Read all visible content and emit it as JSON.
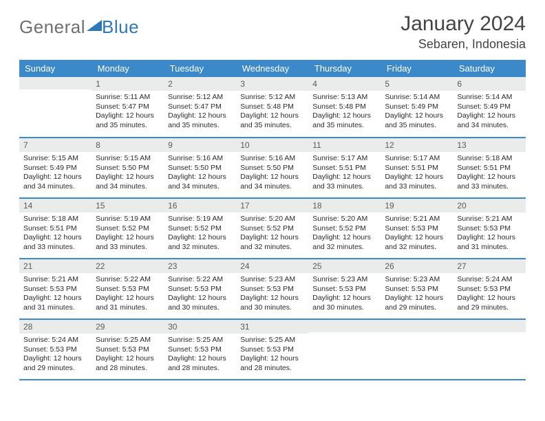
{
  "logo": {
    "part1": "General",
    "part2": "Blue"
  },
  "title": "January 2024",
  "location": "Sebaren, Indonesia",
  "colors": {
    "header_bg": "#3b89c9",
    "header_text": "#ffffff",
    "daynum_bg": "#e9eceb",
    "rule": "#3b89c9",
    "logo_gray": "#6f6f6f",
    "logo_blue": "#2e77b8"
  },
  "weekdays": [
    "Sunday",
    "Monday",
    "Tuesday",
    "Wednesday",
    "Thursday",
    "Friday",
    "Saturday"
  ],
  "weeks": [
    [
      {
        "n": "",
        "sunrise": "",
        "sunset": "",
        "daylight": ""
      },
      {
        "n": "1",
        "sunrise": "5:11 AM",
        "sunset": "5:47 PM",
        "daylight": "12 hours and 35 minutes."
      },
      {
        "n": "2",
        "sunrise": "5:12 AM",
        "sunset": "5:47 PM",
        "daylight": "12 hours and 35 minutes."
      },
      {
        "n": "3",
        "sunrise": "5:12 AM",
        "sunset": "5:48 PM",
        "daylight": "12 hours and 35 minutes."
      },
      {
        "n": "4",
        "sunrise": "5:13 AM",
        "sunset": "5:48 PM",
        "daylight": "12 hours and 35 minutes."
      },
      {
        "n": "5",
        "sunrise": "5:14 AM",
        "sunset": "5:49 PM",
        "daylight": "12 hours and 35 minutes."
      },
      {
        "n": "6",
        "sunrise": "5:14 AM",
        "sunset": "5:49 PM",
        "daylight": "12 hours and 34 minutes."
      }
    ],
    [
      {
        "n": "7",
        "sunrise": "5:15 AM",
        "sunset": "5:49 PM",
        "daylight": "12 hours and 34 minutes."
      },
      {
        "n": "8",
        "sunrise": "5:15 AM",
        "sunset": "5:50 PM",
        "daylight": "12 hours and 34 minutes."
      },
      {
        "n": "9",
        "sunrise": "5:16 AM",
        "sunset": "5:50 PM",
        "daylight": "12 hours and 34 minutes."
      },
      {
        "n": "10",
        "sunrise": "5:16 AM",
        "sunset": "5:50 PM",
        "daylight": "12 hours and 34 minutes."
      },
      {
        "n": "11",
        "sunrise": "5:17 AM",
        "sunset": "5:51 PM",
        "daylight": "12 hours and 33 minutes."
      },
      {
        "n": "12",
        "sunrise": "5:17 AM",
        "sunset": "5:51 PM",
        "daylight": "12 hours and 33 minutes."
      },
      {
        "n": "13",
        "sunrise": "5:18 AM",
        "sunset": "5:51 PM",
        "daylight": "12 hours and 33 minutes."
      }
    ],
    [
      {
        "n": "14",
        "sunrise": "5:18 AM",
        "sunset": "5:51 PM",
        "daylight": "12 hours and 33 minutes."
      },
      {
        "n": "15",
        "sunrise": "5:19 AM",
        "sunset": "5:52 PM",
        "daylight": "12 hours and 33 minutes."
      },
      {
        "n": "16",
        "sunrise": "5:19 AM",
        "sunset": "5:52 PM",
        "daylight": "12 hours and 32 minutes."
      },
      {
        "n": "17",
        "sunrise": "5:20 AM",
        "sunset": "5:52 PM",
        "daylight": "12 hours and 32 minutes."
      },
      {
        "n": "18",
        "sunrise": "5:20 AM",
        "sunset": "5:52 PM",
        "daylight": "12 hours and 32 minutes."
      },
      {
        "n": "19",
        "sunrise": "5:21 AM",
        "sunset": "5:53 PM",
        "daylight": "12 hours and 32 minutes."
      },
      {
        "n": "20",
        "sunrise": "5:21 AM",
        "sunset": "5:53 PM",
        "daylight": "12 hours and 31 minutes."
      }
    ],
    [
      {
        "n": "21",
        "sunrise": "5:21 AM",
        "sunset": "5:53 PM",
        "daylight": "12 hours and 31 minutes."
      },
      {
        "n": "22",
        "sunrise": "5:22 AM",
        "sunset": "5:53 PM",
        "daylight": "12 hours and 31 minutes."
      },
      {
        "n": "23",
        "sunrise": "5:22 AM",
        "sunset": "5:53 PM",
        "daylight": "12 hours and 30 minutes."
      },
      {
        "n": "24",
        "sunrise": "5:23 AM",
        "sunset": "5:53 PM",
        "daylight": "12 hours and 30 minutes."
      },
      {
        "n": "25",
        "sunrise": "5:23 AM",
        "sunset": "5:53 PM",
        "daylight": "12 hours and 30 minutes."
      },
      {
        "n": "26",
        "sunrise": "5:23 AM",
        "sunset": "5:53 PM",
        "daylight": "12 hours and 29 minutes."
      },
      {
        "n": "27",
        "sunrise": "5:24 AM",
        "sunset": "5:53 PM",
        "daylight": "12 hours and 29 minutes."
      }
    ],
    [
      {
        "n": "28",
        "sunrise": "5:24 AM",
        "sunset": "5:53 PM",
        "daylight": "12 hours and 29 minutes."
      },
      {
        "n": "29",
        "sunrise": "5:25 AM",
        "sunset": "5:53 PM",
        "daylight": "12 hours and 28 minutes."
      },
      {
        "n": "30",
        "sunrise": "5:25 AM",
        "sunset": "5:53 PM",
        "daylight": "12 hours and 28 minutes."
      },
      {
        "n": "31",
        "sunrise": "5:25 AM",
        "sunset": "5:53 PM",
        "daylight": "12 hours and 28 minutes."
      },
      {
        "n": "",
        "sunrise": "",
        "sunset": "",
        "daylight": ""
      },
      {
        "n": "",
        "sunrise": "",
        "sunset": "",
        "daylight": ""
      },
      {
        "n": "",
        "sunrise": "",
        "sunset": "",
        "daylight": ""
      }
    ]
  ],
  "labels": {
    "sunrise": "Sunrise:",
    "sunset": "Sunset:",
    "daylight": "Daylight:"
  }
}
